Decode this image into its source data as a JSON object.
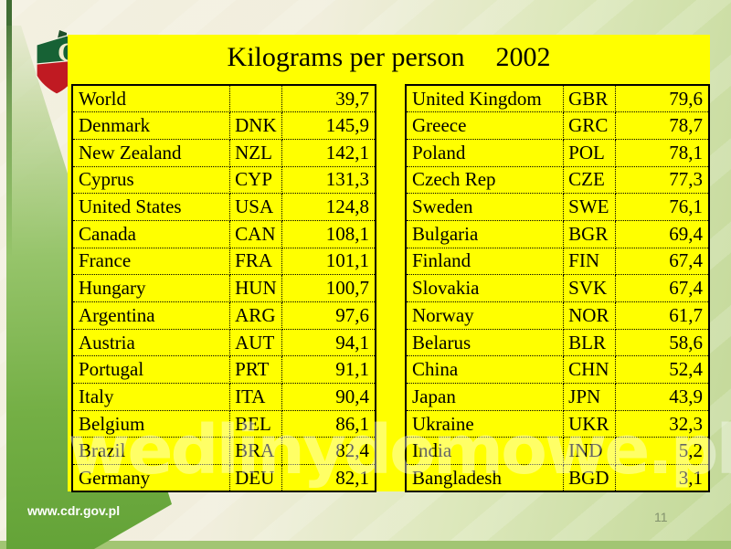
{
  "title": {
    "main": "Kilograms per person",
    "year": "2002"
  },
  "watermark": "wedlinydomowe.pl",
  "footer": {
    "website": "www.cdr.gov.pl",
    "page_number": "11"
  },
  "logo": {
    "letter": "C"
  },
  "colors": {
    "panel_yellow": "#ffff00",
    "background_cream": "#f1eedd",
    "background_green": "#c2d897",
    "band_green": "#61a135",
    "logo_green": "#176235",
    "logo_red": "#c01a22",
    "border_black": "#000000"
  },
  "table_left": {
    "rows": [
      {
        "country": "World",
        "code": "",
        "value": "39,7"
      },
      {
        "country": "Denmark",
        "code": "DNK",
        "value": "145,9"
      },
      {
        "country": "New Zealand",
        "code": "NZL",
        "value": "142,1"
      },
      {
        "country": "Cyprus",
        "code": "CYP",
        "value": "131,3"
      },
      {
        "country": "United States",
        "code": "USA",
        "value": "124,8"
      },
      {
        "country": "Canada",
        "code": "CAN",
        "value": "108,1"
      },
      {
        "country": "France",
        "code": "FRA",
        "value": "101,1"
      },
      {
        "country": "Hungary",
        "code": "HUN",
        "value": "100,7"
      },
      {
        "country": "Argentina",
        "code": "ARG",
        "value": "97,6"
      },
      {
        "country": "Austria",
        "code": "AUT",
        "value": "94,1"
      },
      {
        "country": "Portugal",
        "code": "PRT",
        "value": "91,1"
      },
      {
        "country": "Italy",
        "code": "ITA",
        "value": "90,4"
      },
      {
        "country": "Belgium",
        "code": "BEL",
        "value": "86,1"
      },
      {
        "country": "Brazil",
        "code": "BRA",
        "value": "82,4"
      },
      {
        "country": "Germany",
        "code": "DEU",
        "value": "82,1"
      }
    ]
  },
  "table_right": {
    "rows": [
      {
        "country": "United Kingdom",
        "code": "GBR",
        "value": "79,6"
      },
      {
        "country": "Greece",
        "code": "GRC",
        "value": "78,7"
      },
      {
        "country": "Poland",
        "code": "POL",
        "value": "78,1"
      },
      {
        "country": "Czech Rep",
        "code": "CZE",
        "value": "77,3"
      },
      {
        "country": "Sweden",
        "code": "SWE",
        "value": "76,1"
      },
      {
        "country": "Bulgaria",
        "code": "BGR",
        "value": "69,4"
      },
      {
        "country": "Finland",
        "code": "FIN",
        "value": "67,4"
      },
      {
        "country": "Slovakia",
        "code": "SVK",
        "value": "67,4"
      },
      {
        "country": "Norway",
        "code": "NOR",
        "value": "61,7"
      },
      {
        "country": "Belarus",
        "code": "BLR",
        "value": "58,6"
      },
      {
        "country": "China",
        "code": "CHN",
        "value": "52,4"
      },
      {
        "country": "Japan",
        "code": "JPN",
        "value": "43,9"
      },
      {
        "country": "Ukraine",
        "code": "UKR",
        "value": "32,3"
      },
      {
        "country": "India",
        "code": "IND",
        "value": "5,2"
      },
      {
        "country": "Bangladesh",
        "code": "BGD",
        "value": "3,1"
      }
    ]
  }
}
